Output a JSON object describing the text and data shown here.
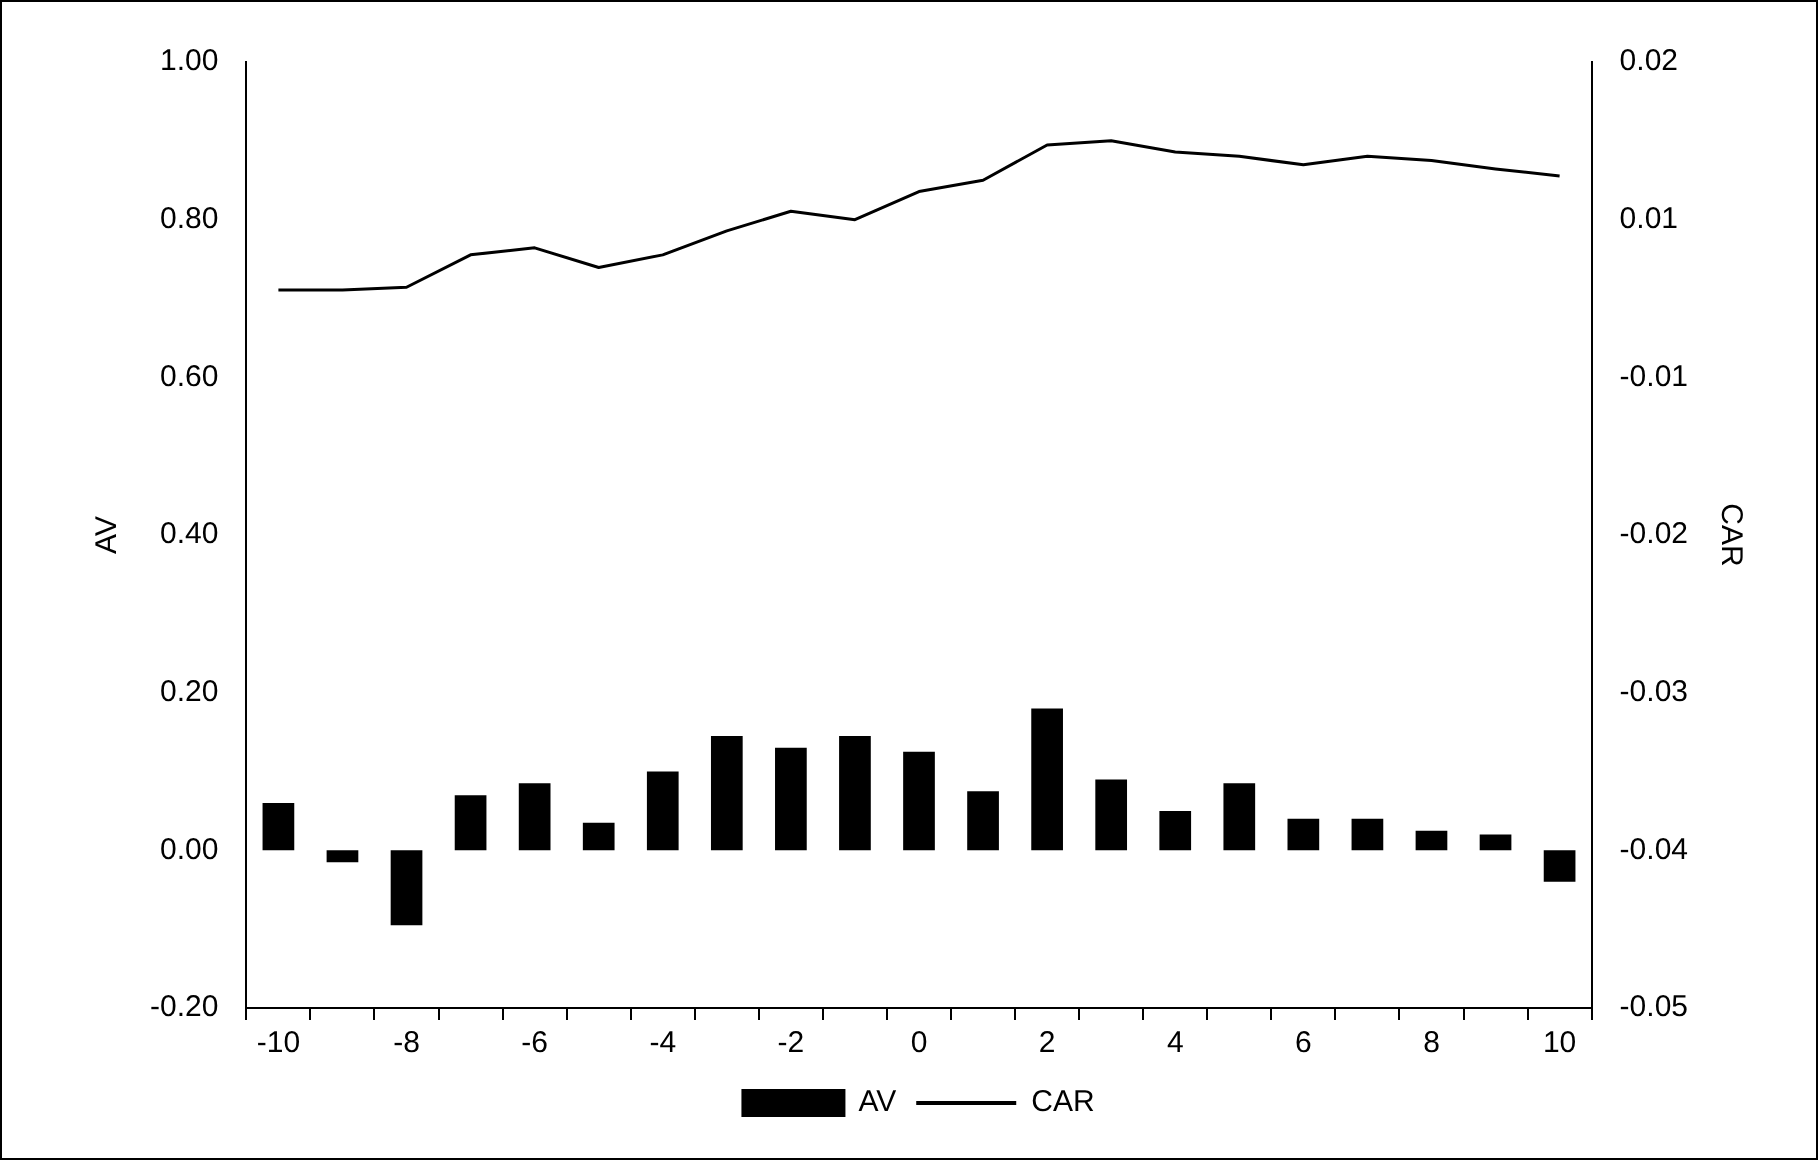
{
  "chart_data": {
    "type": "bar",
    "categories": [
      "-10",
      null,
      "-8",
      null,
      "-6",
      null,
      "-4",
      null,
      "-2",
      null,
      "0",
      null,
      "2",
      null,
      "4",
      null,
      "6",
      null,
      "8",
      null,
      "10"
    ],
    "series": [
      {
        "name": "AV",
        "color": "#000000",
        "values": [
          0.06,
          -0.015,
          -0.095,
          0.07,
          0.085,
          0.035,
          0.1,
          0.145,
          0.13,
          0.145,
          0.125,
          0.075,
          0.18,
          0.09,
          0.05,
          0.085,
          0.04,
          0.04,
          0.025,
          0.02,
          -0.04
        ]
      },
      {
        "name": "CAR",
        "type": "line",
        "axis": "y2",
        "color": "#000000",
        "values": [
          0.0008,
          0.0008,
          0.001,
          0.0033,
          0.0038,
          0.0024,
          0.0033,
          0.005,
          0.0064,
          0.0058,
          0.0078,
          0.0086,
          0.0111,
          0.0114,
          0.0106,
          0.0103,
          0.0097,
          0.0103,
          0.01,
          0.0094,
          0.0089
        ]
      }
    ],
    "ylabel": "AV",
    "y2label": "CAR",
    "ylim": [
      -0.2,
      1.0
    ],
    "yticks": [
      {
        "value": -0.2,
        "label": "-0.20"
      },
      {
        "value": 0,
        "label": "0.00"
      },
      {
        "value": 0.2,
        "label": "0.20"
      },
      {
        "value": 0.4,
        "label": "0.40"
      },
      {
        "value": 0.6,
        "label": "0.60"
      },
      {
        "value": 0.8,
        "label": "0.80"
      },
      {
        "value": 1.0,
        "label": "1.00"
      }
    ],
    "y2lim": [
      -0.0502,
      0.017
    ],
    "y2ticks": [
      {
        "value": -0.0502,
        "label": "-0.05"
      },
      {
        "value": -0.039,
        "label": "-0.04"
      },
      {
        "value": -0.0278,
        "label": "-0.03"
      },
      {
        "value": -0.0166,
        "label": "-0.02"
      },
      {
        "value": -0.0054,
        "label": "-0.01"
      },
      {
        "value": 0.0058,
        "label": "0.01"
      },
      {
        "value": 0.017,
        "label": "0.02"
      }
    ],
    "grid": false,
    "legend": "bottom",
    "marker": "none",
    "line_style": "solid"
  }
}
